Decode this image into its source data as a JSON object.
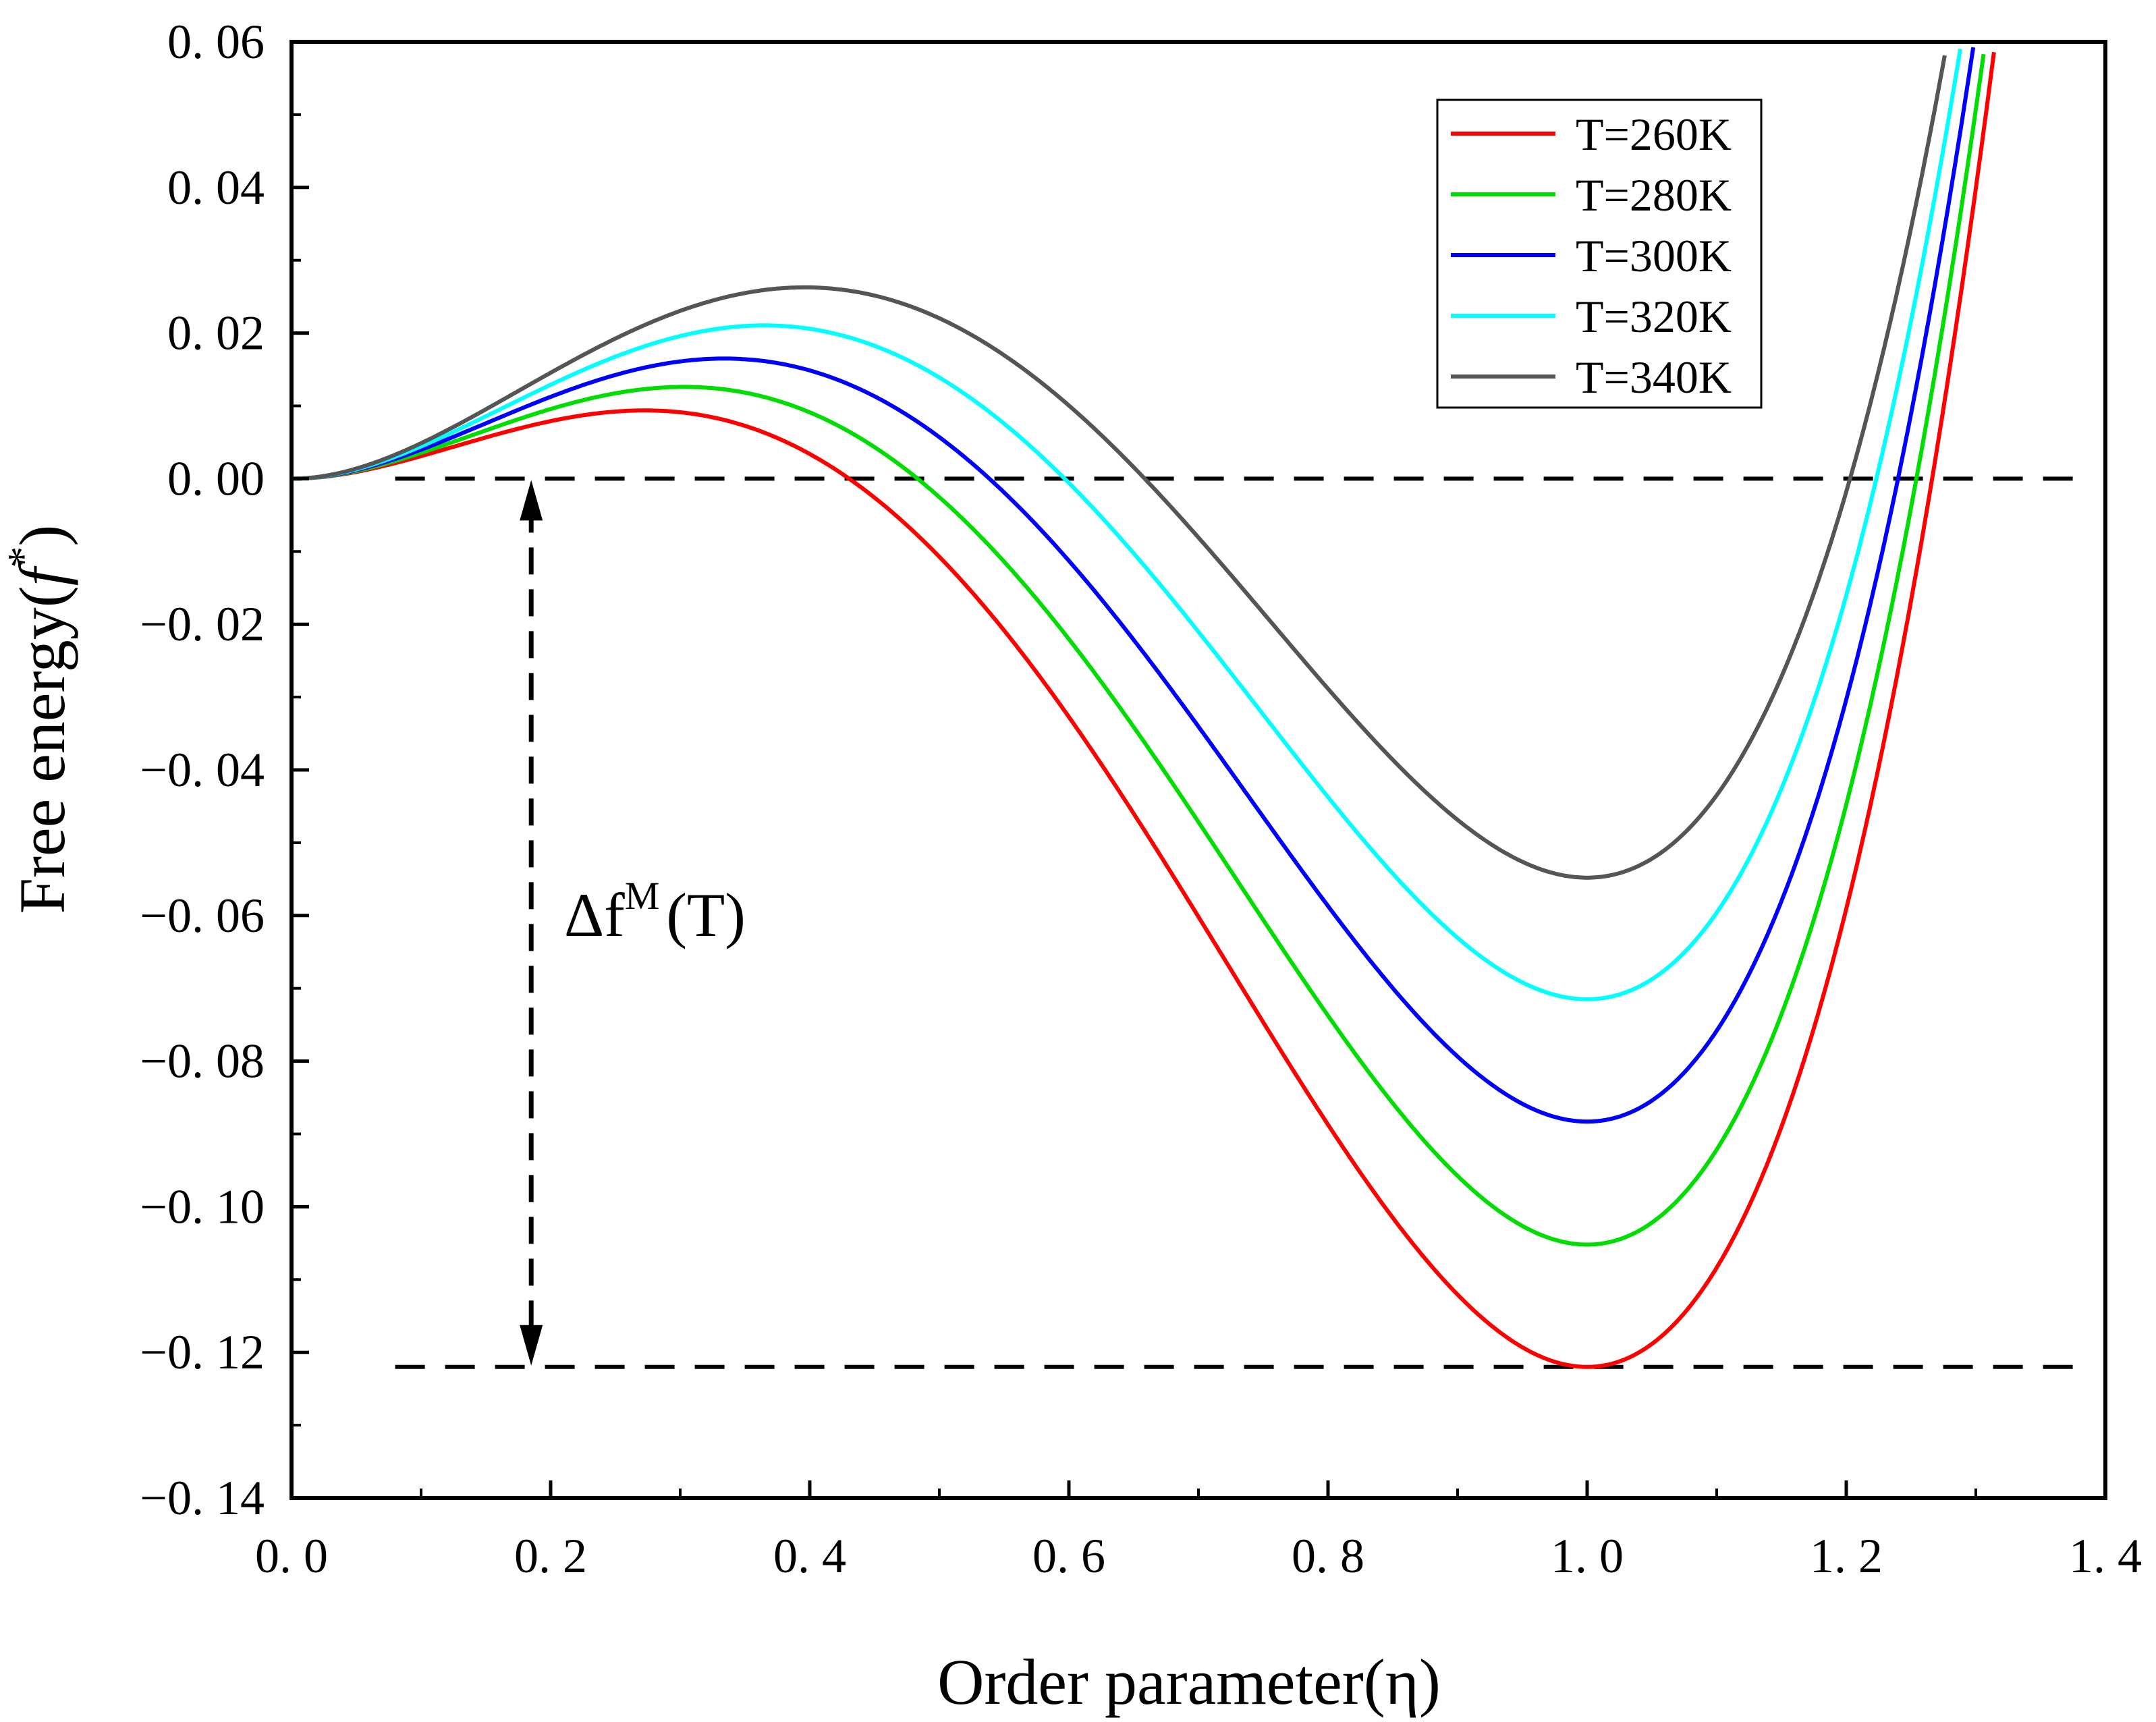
{
  "chart_data": {
    "type": "line",
    "title": "",
    "xlabel": "Order parameter(η)",
    "ylabel_main": "Free energy(",
    "ylabel_f": "f",
    "ylabel_sup": "*",
    "ylabel_close": ")",
    "xlim": [
      0.0,
      1.4
    ],
    "ylim": [
      -0.14,
      0.06
    ],
    "x_ticks": [
      0.0,
      0.2,
      0.4,
      0.6,
      0.8,
      1.0,
      1.2,
      1.4
    ],
    "x_tick_labels": [
      "0. 0",
      "0. 2",
      "0. 4",
      "0. 6",
      "0. 8",
      "1. 0",
      "1. 2",
      "1. 4"
    ],
    "y_ticks": [
      0.06,
      0.04,
      0.02,
      0.0,
      -0.02,
      -0.04,
      -0.06,
      -0.08,
      -0.1,
      -0.12,
      -0.14
    ],
    "y_tick_labels": [
      "0. 06",
      "0. 04",
      "0. 02",
      "0. 00",
      "−0. 02",
      "−0. 04",
      "−0. 06",
      "−0. 08",
      "−0. 10",
      "−0. 12",
      "−0. 14"
    ],
    "grid": false,
    "legend_position": "top-right",
    "series": [
      {
        "name": "T=260K",
        "color": "#ff0000",
        "barrier": 0.0028,
        "well": -0.122
      },
      {
        "name": "T=280K",
        "color": "#00dd00",
        "barrier": 0.0047,
        "well": -0.1052
      },
      {
        "name": "T=300K",
        "color": "#0000ff",
        "barrier": 0.0075,
        "well": -0.0883
      },
      {
        "name": "T=320K",
        "color": "#00ffff",
        "barrier": 0.0111,
        "well": -0.0715
      },
      {
        "name": "T=340K",
        "color": "#555555",
        "barrier": 0.0158,
        "well": -0.0548
      }
    ],
    "reference_lines": [
      {
        "y": 0.0,
        "style": "dashed",
        "color": "#000000"
      },
      {
        "y": -0.122,
        "style": "dashed",
        "color": "#000000"
      }
    ],
    "annotation": {
      "text_main": "Δf",
      "text_sup": "M",
      "text_tail": "(T)",
      "arrow_x": 0.185,
      "arrow_from_y": 0.0,
      "arrow_to_y": -0.122
    }
  }
}
